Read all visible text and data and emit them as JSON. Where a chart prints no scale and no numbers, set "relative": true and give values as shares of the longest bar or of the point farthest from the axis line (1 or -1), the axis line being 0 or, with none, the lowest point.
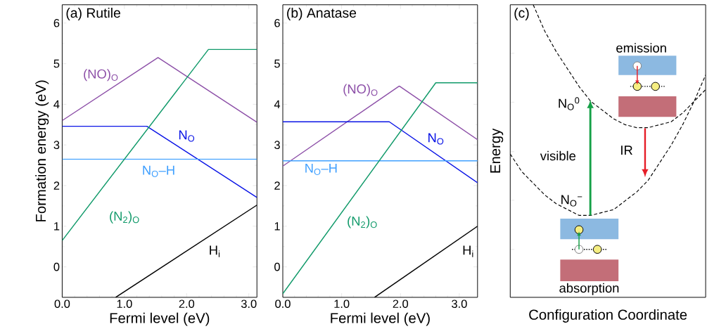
{
  "chart_data": [
    {
      "type": "line",
      "title": "(a) Rutile",
      "xlabel": "Fermi level (eV)",
      "ylabel": "Formation energy (eV)",
      "xlim": [
        0,
        3.13
      ],
      "ylim": [
        -0.75,
        6.45
      ],
      "xticks": [
        {
          "value": 0,
          "label": "0.0"
        },
        {
          "value": 1,
          "label": "1.0"
        },
        {
          "value": 2,
          "label": "2.0"
        },
        {
          "value": 3,
          "label": "3.0"
        }
      ],
      "yticks": [
        0,
        1,
        2,
        3,
        4,
        5,
        6
      ],
      "series": [
        {
          "name": "(NO)$_{O}$",
          "color": "#8d50a8",
          "x": [
            0,
            1.54,
            3.13
          ],
          "values": [
            3.6,
            5.15,
            3.56
          ]
        },
        {
          "name": "N$_{O}$",
          "color": "#0a14e6",
          "x": [
            0,
            1.36,
            3.13
          ],
          "values": [
            3.46,
            3.46,
            1.71
          ]
        },
        {
          "name": "N$_{O}$–H",
          "color": "#40a0ff",
          "x": [
            0,
            3.13
          ],
          "values": [
            2.65,
            2.65
          ]
        },
        {
          "name": "(N$_{2}$)$_{O}$",
          "color": "#119a6a",
          "x": [
            0,
            2.35,
            3.13
          ],
          "values": [
            0.65,
            5.35,
            5.35
          ]
        },
        {
          "name": "H$_{i}$",
          "color": "#000000",
          "x": [
            0.86,
            3.13
          ],
          "values": [
            -0.75,
            1.52
          ]
        }
      ]
    },
    {
      "type": "line",
      "title": "(b) Anatase",
      "xlabel": "Fermi level (eV)",
      "xlim": [
        0,
        3.31
      ],
      "ylim": [
        -0.75,
        6.45
      ],
      "xticks": [
        {
          "value": 0,
          "label": "0.0"
        },
        {
          "value": 1,
          "label": "1.0"
        },
        {
          "value": 2,
          "label": "2.0"
        },
        {
          "value": 3,
          "label": "3.0"
        }
      ],
      "yticks": [
        0,
        1,
        2,
        3,
        4,
        5,
        6
      ],
      "series": [
        {
          "name": "(NO)$_{O}$",
          "color": "#8d50a8",
          "x": [
            0,
            1.98,
            3.31
          ],
          "values": [
            2.48,
            4.45,
            3.13
          ]
        },
        {
          "name": "N$_{O}$",
          "color": "#0a14e6",
          "x": [
            0,
            1.81,
            3.31
          ],
          "values": [
            3.57,
            3.57,
            2.07
          ]
        },
        {
          "name": "N$_{O}$–H",
          "color": "#40a0ff",
          "x": [
            0,
            3.31
          ],
          "values": [
            2.61,
            2.61
          ]
        },
        {
          "name": "(N$_{2}$)$_{O}$",
          "color": "#119a6a",
          "x": [
            0,
            2.6,
            3.31
          ],
          "values": [
            -0.66,
            4.53,
            4.53
          ]
        },
        {
          "name": "H$_{i}$",
          "color": "#000000",
          "x": [
            1.56,
            3.31
          ],
          "values": [
            -0.75,
            1.0
          ]
        }
      ]
    },
    {
      "type": "line",
      "relative": true,
      "line_style": "dashed",
      "title": "(c)",
      "xlabel": "Configuration Coordinate",
      "ylabel": "Energy",
      "categories": [
        null,
        null,
        null,
        null,
        null,
        null,
        null,
        null,
        null,
        null,
        null,
        null,
        null,
        null,
        null,
        null,
        null,
        null
      ],
      "series": [
        {
          "color": "#000000",
          "values": [
            0.49,
            0.43,
            0.39,
            0.35,
            0.32,
            0.3,
            0.28,
            0.28,
            0.29,
            0.3,
            0.33,
            0.36,
            0.4,
            0.46,
            0.52,
            0.59,
            0.67,
            0.76
          ]
        },
        {
          "color": "#000000",
          "values": [
            null,
            null,
            1.0,
            0.91,
            0.84,
            0.78,
            0.72,
            0.67,
            0.64,
            0.61,
            0.59,
            0.58,
            0.58,
            0.59,
            0.6,
            0.63,
            0.67,
            0.71
          ]
        }
      ],
      "annotations": [
        "emission",
        "N$_{O}$$^{0}$",
        "visible",
        "IR",
        "N$_{O}$$^{−}$",
        "absorption"
      ]
    }
  ]
}
